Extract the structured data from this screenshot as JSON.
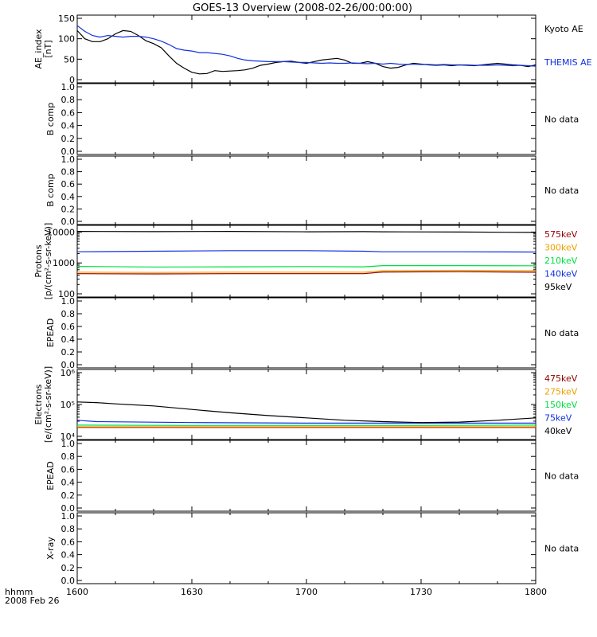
{
  "title": "GOES-13 Overview (2008-02-26/00:00:00)",
  "x_axis": {
    "tick_labels": [
      "1600",
      "1630",
      "1700",
      "1730",
      "1800"
    ],
    "unit_label": "hhmm",
    "date_label": "2008 Feb 26"
  },
  "colors": {
    "black": "#000000",
    "blue": "#1030e0",
    "green": "#00e040",
    "orange": "#f0a000",
    "darkred": "#900000"
  },
  "chart_data": [
    {
      "type": "line",
      "panel": "ae",
      "ylabel": [
        "AE_index",
        "[nT]"
      ],
      "ylim": [
        0,
        150
      ],
      "yticks": [
        "0",
        "50",
        "100",
        "150"
      ],
      "x_range": [
        0,
        120
      ],
      "series": [
        {
          "name": "Kyoto AE",
          "color": "#000000",
          "x": [
            0,
            2,
            4,
            6,
            8,
            10,
            12,
            14,
            16,
            18,
            20,
            22,
            24,
            26,
            28,
            30,
            32,
            34,
            36,
            38,
            40,
            42,
            44,
            46,
            48,
            50,
            52,
            54,
            56,
            58,
            60,
            62,
            64,
            66,
            68,
            70,
            72,
            74,
            76,
            78,
            80,
            82,
            84,
            86,
            88,
            90,
            92,
            94,
            96,
            98,
            100,
            102,
            104,
            106,
            108,
            110,
            112,
            114,
            116,
            118,
            120
          ],
          "y": [
            120,
            100,
            93,
            93,
            100,
            112,
            120,
            118,
            108,
            95,
            88,
            78,
            58,
            40,
            28,
            18,
            14,
            15,
            22,
            20,
            21,
            22,
            24,
            28,
            35,
            38,
            42,
            44,
            45,
            42,
            40,
            44,
            48,
            50,
            52,
            48,
            40,
            40,
            44,
            40,
            32,
            28,
            30,
            36,
            40,
            38,
            36,
            35,
            36,
            34,
            36,
            35,
            34,
            36,
            38,
            40,
            38,
            36,
            35,
            32,
            36
          ]
        },
        {
          "name": "THEMIS AE",
          "color": "#1030e0",
          "x": [
            0,
            2,
            4,
            6,
            8,
            10,
            12,
            14,
            16,
            18,
            20,
            22,
            24,
            26,
            28,
            30,
            32,
            34,
            36,
            38,
            40,
            42,
            44,
            46,
            48,
            50,
            52,
            54,
            56,
            58,
            60,
            62,
            64,
            66,
            68,
            70,
            72,
            74,
            76,
            78,
            80,
            82,
            84,
            86,
            88,
            90,
            92,
            94,
            96,
            98,
            100,
            102,
            104,
            106,
            108,
            110,
            112,
            114,
            116,
            118,
            120
          ],
          "y": [
            132,
            118,
            108,
            104,
            108,
            106,
            104,
            106,
            106,
            104,
            100,
            94,
            86,
            76,
            72,
            70,
            66,
            66,
            64,
            62,
            58,
            52,
            48,
            46,
            45,
            44,
            44,
            44,
            43,
            42,
            42,
            41,
            40,
            41,
            40,
            40,
            41,
            40,
            39,
            40,
            38,
            40,
            38,
            37,
            38,
            37,
            37,
            36,
            37,
            36,
            36,
            36,
            35,
            35,
            35,
            36,
            35,
            34,
            35,
            34,
            33
          ]
        }
      ]
    },
    {
      "type": "line",
      "panel": "bcomp1",
      "ylabel": [
        "B comp"
      ],
      "ylim": [
        0,
        1
      ],
      "yticks": [
        "0.0",
        "0.2",
        "0.4",
        "0.6",
        "0.8",
        "1.0"
      ],
      "status": "No data",
      "series": []
    },
    {
      "type": "line",
      "panel": "bcomp2",
      "ylabel": [
        "B comp"
      ],
      "ylim": [
        0,
        1
      ],
      "yticks": [
        "0.0",
        "0.2",
        "0.4",
        "0.6",
        "0.8",
        "1.0"
      ],
      "status": "No data",
      "series": []
    },
    {
      "type": "line",
      "panel": "protons",
      "log_scale": true,
      "ylabel": [
        "Protons",
        "[p/(cm²-s-sr-keV)]"
      ],
      "ylim": [
        100,
        13000
      ],
      "yticks": [
        "100",
        "1000",
        "10000"
      ],
      "x_range": [
        0,
        120
      ],
      "series": [
        {
          "name": "575keV",
          "color": "#900000",
          "x": [
            0,
            20,
            40,
            60,
            75,
            80,
            100,
            120
          ],
          "y": [
            450,
            440,
            450,
            450,
            450,
            510,
            520,
            500
          ]
        },
        {
          "name": "300keV",
          "color": "#f0a000",
          "x": [
            0,
            20,
            40,
            60,
            75,
            80,
            100,
            120
          ],
          "y": [
            500,
            490,
            500,
            500,
            500,
            560,
            570,
            560
          ]
        },
        {
          "name": "210keV",
          "color": "#00e040",
          "x": [
            0,
            20,
            40,
            60,
            75,
            80,
            100,
            120
          ],
          "y": [
            770,
            740,
            750,
            760,
            750,
            820,
            820,
            810
          ]
        },
        {
          "name": "140keV",
          "color": "#1030e0",
          "x": [
            0,
            20,
            40,
            60,
            75,
            80,
            100,
            120
          ],
          "y": [
            2300,
            2400,
            2500,
            2500,
            2400,
            2300,
            2300,
            2250
          ]
        },
        {
          "name": "95keV",
          "color": "#000000",
          "x": [
            0,
            20,
            40,
            60,
            75,
            80,
            100,
            120
          ],
          "y": [
            10500,
            10300,
            10500,
            10200,
            10300,
            10200,
            10000,
            9700
          ]
        }
      ]
    },
    {
      "type": "line",
      "panel": "epead1",
      "ylabel": [
        "EPEAD"
      ],
      "ylim": [
        0,
        1
      ],
      "yticks": [
        "0.0",
        "0.2",
        "0.4",
        "0.6",
        "0.8",
        "1.0"
      ],
      "status": "No data",
      "series": []
    },
    {
      "type": "line",
      "panel": "electrons",
      "log_scale": true,
      "ylabel": [
        "Electrons",
        "[e/(cm²-s-sr-keV)]"
      ],
      "ylim": [
        10000,
        1000000
      ],
      "yticks": [
        "10⁴",
        "10⁵",
        "10⁶"
      ],
      "x_range": [
        0,
        120
      ],
      "series": [
        {
          "name": "475keV",
          "color": "#900000",
          "x": [
            0,
            30,
            60,
            90,
            120
          ],
          "y": [
            19000,
            19000,
            19000,
            19000,
            19000
          ]
        },
        {
          "name": "275keV",
          "color": "#f0a000",
          "x": [
            0,
            30,
            60,
            90,
            120
          ],
          "y": [
            20000,
            20000,
            20000,
            20000,
            20000
          ]
        },
        {
          "name": "150keV",
          "color": "#00e040",
          "x": [
            0,
            30,
            60,
            90,
            120
          ],
          "y": [
            22500,
            22000,
            22000,
            22000,
            22500
          ]
        },
        {
          "name": "75keV",
          "color": "#1030e0",
          "x": [
            0,
            5,
            30,
            60,
            90,
            120
          ],
          "y": [
            32000,
            29000,
            27000,
            26000,
            26000,
            26000
          ]
        },
        {
          "name": "40keV",
          "color": "#000000",
          "x": [
            0,
            5,
            10,
            20,
            30,
            40,
            50,
            60,
            70,
            80,
            90,
            100,
            110,
            120
          ],
          "y": [
            120000,
            115000,
            105000,
            90000,
            70000,
            55000,
            45000,
            38000,
            32000,
            29000,
            27000,
            28000,
            32000,
            38000
          ]
        }
      ]
    },
    {
      "type": "line",
      "panel": "epead2",
      "ylabel": [
        "EPEAD"
      ],
      "ylim": [
        0,
        1
      ],
      "yticks": [
        "0.0",
        "0.2",
        "0.4",
        "0.6",
        "0.8",
        "1.0"
      ],
      "status": "No data",
      "series": []
    },
    {
      "type": "line",
      "panel": "xray",
      "ylabel": [
        "X-ray"
      ],
      "ylim": [
        0,
        1
      ],
      "yticks": [
        "0.0",
        "0.2",
        "0.4",
        "0.6",
        "0.8",
        "1.0"
      ],
      "status": "No data",
      "series": []
    }
  ]
}
